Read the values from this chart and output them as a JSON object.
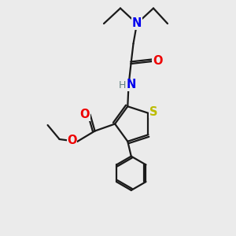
{
  "background_color": "#ebebeb",
  "bond_color": "#1a1a1a",
  "atom_colors": {
    "N": "#0000ee",
    "O": "#ee0000",
    "S": "#bbbb00",
    "H": "#608080",
    "C": "#1a1a1a"
  },
  "figsize": [
    3.0,
    3.0
  ],
  "dpi": 100,
  "lw": 1.6,
  "fs": 9.5
}
